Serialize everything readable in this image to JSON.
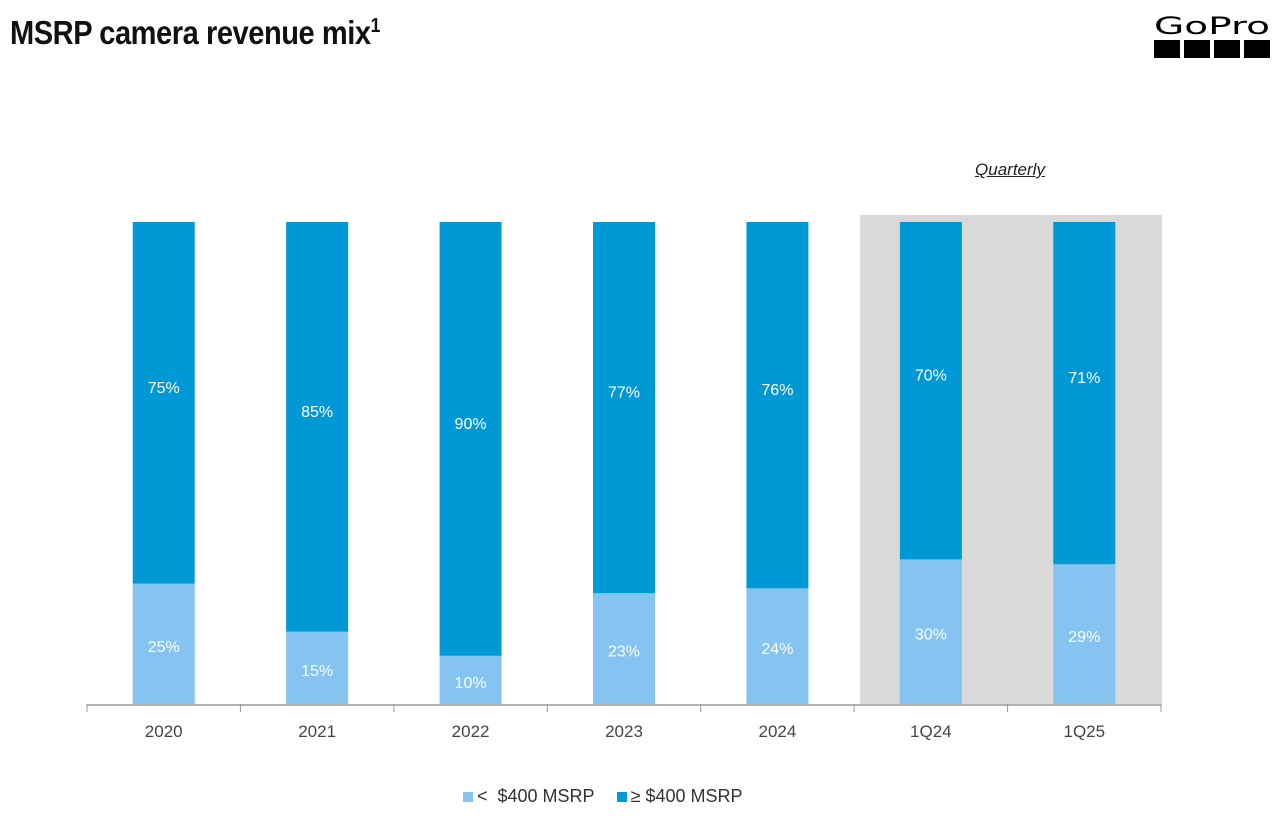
{
  "title": "MSRP camera revenue mix",
  "title_sup": "1",
  "logo_text": "GoPro",
  "annotation": "Quarterly",
  "chart_data": {
    "type": "bar",
    "stacked": true,
    "categories": [
      "2020",
      "2021",
      "2022",
      "2023",
      "2024",
      "1Q24",
      "1Q25"
    ],
    "series": [
      {
        "name": "<  $400 MSRP",
        "color": "#85c4f0",
        "values": [
          25,
          15,
          10,
          23,
          24,
          30,
          29
        ]
      },
      {
        "name": "≥ $400 MSRP",
        "color": "#0099d5",
        "values": [
          75,
          85,
          90,
          77,
          76,
          70,
          71
        ]
      }
    ],
    "labels_unit": "%",
    "ylim": [
      0,
      100
    ],
    "highlighted_categories": [
      "1Q24",
      "1Q25"
    ],
    "highlight_color": "#d9d9d9",
    "grid": false,
    "legend_placement": "bottom"
  }
}
